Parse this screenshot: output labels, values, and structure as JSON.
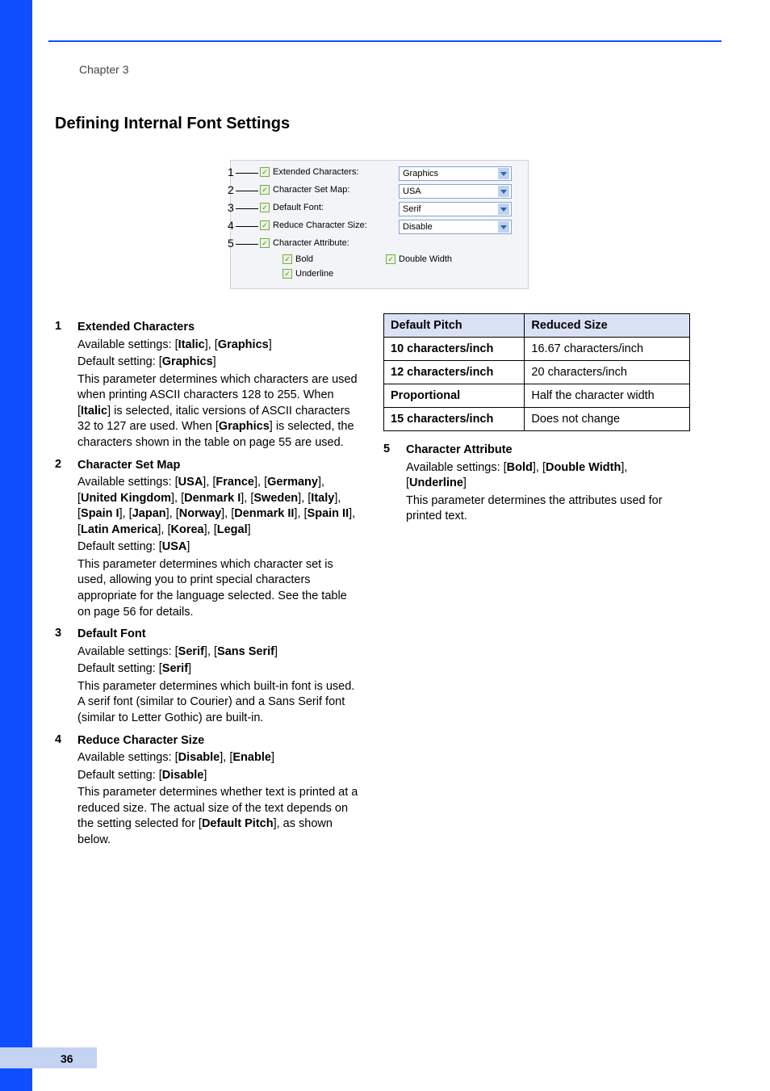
{
  "chapter": "Chapter 3",
  "heading": "Defining Internal Font Settings",
  "page_number": "36",
  "colors": {
    "sidebar": "#0d4fff",
    "footer_strip": "#c5d3f3",
    "rule": "#0d4fff",
    "dialog_bg": "#f2f4f8",
    "select_border": "#8aa2cf",
    "select_arrow_bg": "#bcd3f0",
    "checkbox_bg": "#e9f3e0",
    "checkbox_border": "#7ba84b",
    "table_header_bg": "#d9e2f5"
  },
  "dialog": {
    "callouts": [
      "1",
      "2",
      "3",
      "4",
      "5"
    ],
    "rows": [
      {
        "label": "Extended Characters:",
        "value": "Graphics"
      },
      {
        "label": "Character Set Map:",
        "value": "USA"
      },
      {
        "label": "Default Font:",
        "value": "Serif"
      },
      {
        "label": "Reduce Character Size:",
        "value": "Disable"
      },
      {
        "label": "Character Attribute:"
      }
    ],
    "attrs": {
      "bold": "Bold",
      "underline": "Underline",
      "double_width": "Double Width"
    }
  },
  "items": [
    {
      "num": "1",
      "title": "Extended Characters",
      "avail_prefix": "Available settings: [",
      "avail_parts": [
        "Italic",
        "], [",
        "Graphics",
        "]"
      ],
      "default_prefix": "Default setting: [",
      "default_val": "Graphics",
      "default_suffix": "]",
      "desc_a": "This parameter determines which characters are used when printing ASCII characters 128 to 255. When [",
      "desc_b": "Italic",
      "desc_c": "] is selected, italic versions of ASCII characters 32 to 127 are used. When [",
      "desc_d": "Graphics",
      "desc_e": "] is selected, the characters shown in the table on page 55 are used."
    },
    {
      "num": "2",
      "title": "Character Set Map",
      "avail_prefix": "Available settings: [",
      "avail_list": [
        "USA",
        "France",
        "Germany",
        "United Kingdom",
        "Denmark I",
        "Sweden",
        "Italy",
        "Spain I",
        "Japan",
        "Norway",
        "Denmark II",
        "Spain II",
        "Latin America",
        "Korea",
        "Legal"
      ],
      "default_prefix": "Default setting: [",
      "default_val": "USA",
      "default_suffix": "]",
      "desc": "This parameter determines which character set is used, allowing you to print special characters appropriate for the language selected. See the table on page 56 for details."
    },
    {
      "num": "3",
      "title": "Default Font",
      "avail_prefix": "Available settings: [",
      "avail_parts": [
        "Serif",
        "], [",
        "Sans Serif",
        "]"
      ],
      "default_prefix": "Default setting: [",
      "default_val": "Serif",
      "default_suffix": "]",
      "desc": "This parameter determines which built-in font is used. A serif font (similar to Courier) and a Sans Serif font (similar to Letter Gothic) are built-in."
    },
    {
      "num": "4",
      "title": "Reduce Character Size",
      "avail_prefix": "Available settings: [",
      "avail_parts": [
        "Disable",
        "], [",
        "Enable",
        "]"
      ],
      "default_prefix": "Default setting: [",
      "default_val": "Disable",
      "default_suffix": "]",
      "desc_a": "This parameter determines whether text is printed at a reduced size. The actual size of the text depends on the setting selected for [",
      "desc_b": "Default Pitch",
      "desc_c": "], as shown below."
    },
    {
      "num": "5",
      "title": "Character Attribute",
      "avail_prefix": "Available settings: [",
      "avail_parts": [
        "Bold",
        "], [",
        "Double Width",
        "], [",
        "Underline",
        "]"
      ],
      "desc": "This parameter determines the attributes used for printed text."
    }
  ],
  "table": {
    "headers": [
      "Default Pitch",
      "Reduced Size"
    ],
    "rows": [
      [
        "10 characters/inch",
        "16.67 characters/inch"
      ],
      [
        "12 characters/inch",
        "20 characters/inch"
      ],
      [
        "Proportional",
        "Half the character width"
      ],
      [
        "15 characters/inch",
        "Does not change"
      ]
    ]
  }
}
